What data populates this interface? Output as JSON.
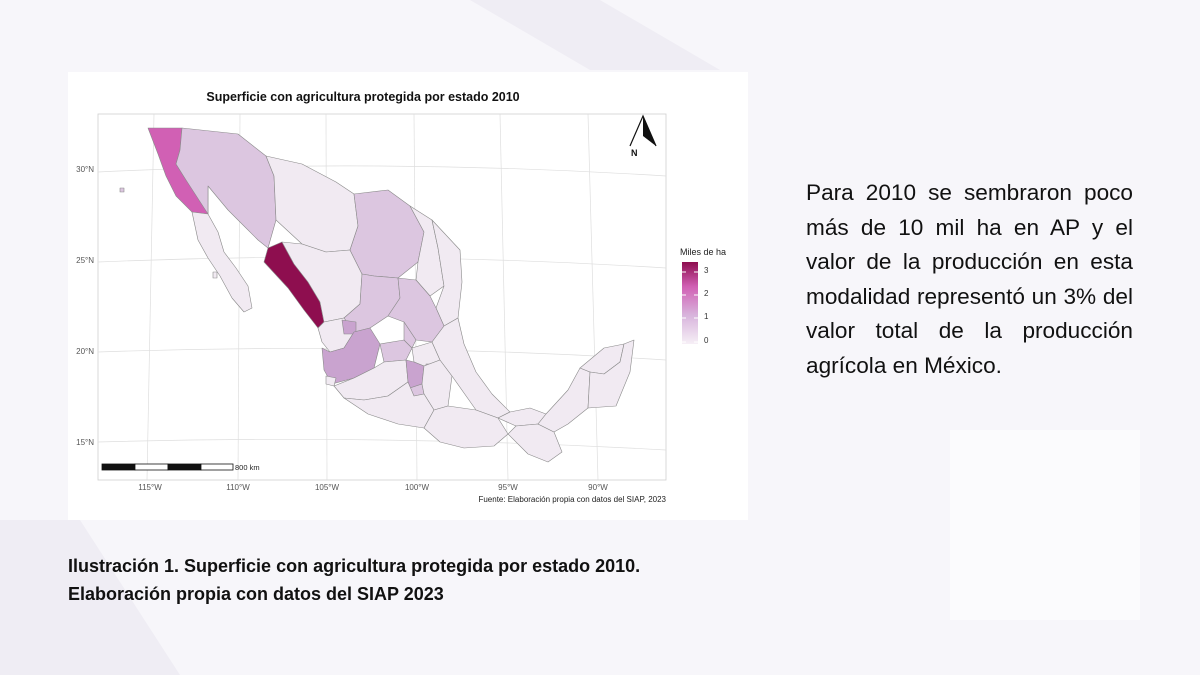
{
  "map": {
    "title": "Superficie con agricultura protegida por estado 2010",
    "lat_labels": [
      "30°N",
      "25°N",
      "20°N",
      "15°N"
    ],
    "lon_labels": [
      "115°W",
      "110°W",
      "105°W",
      "100°W",
      "95°W",
      "90°W"
    ],
    "legend_title": "Miles de ha",
    "legend_ticks": [
      "3",
      "2",
      "1",
      "0"
    ],
    "legend_range": [
      0,
      3.2
    ],
    "scale_label": "800 km",
    "north_label": "N",
    "source": "Fuente: Elaboración propia con datos del SIAP, 2023",
    "colors": {
      "low": "#f1eaf2",
      "light": "#dcc6e0",
      "mid": "#c9a3cf",
      "high": "#d160b4",
      "max": "#8e0e4f"
    }
  },
  "paragraph": "Para 2010 se sembraron poco más de 10 mil ha en AP y el valor de la producción en esta modalidad representó un 3% del valor total de la producción agrícola en México.",
  "caption": {
    "line1": "Ilustración 1. Superficie con agricultura protegida por estado 2010.",
    "line2": "Elaboración propia con datos del SIAP 2023"
  }
}
